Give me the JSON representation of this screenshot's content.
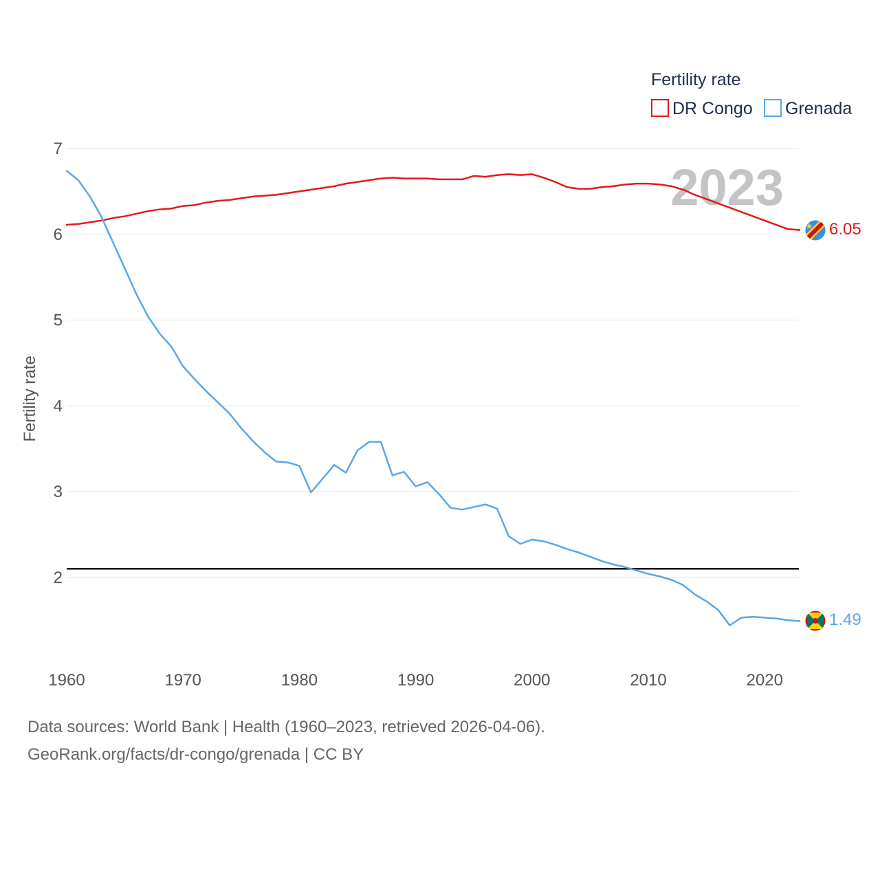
{
  "chart_data": {
    "type": "line",
    "ylabel": "Fertility rate",
    "xlabel": "",
    "xlim": [
      1960,
      2023
    ],
    "ylim": [
      1,
      7
    ],
    "x_ticks": [
      1960,
      1970,
      1980,
      1990,
      2000,
      2010,
      2020
    ],
    "y_ticks": [
      2,
      3,
      4,
      5,
      6,
      7
    ],
    "grid": true,
    "legend": {
      "title": "Fertility rate",
      "placement": "top-right",
      "items": [
        {
          "name": "DR Congo",
          "color": "#e31a1c"
        },
        {
          "name": "Grenada",
          "color": "#5ba6e8"
        }
      ]
    },
    "year_label": "2023",
    "reference_line": {
      "y": 2.1,
      "color": "#000000"
    },
    "x": [
      1960,
      1961,
      1962,
      1963,
      1964,
      1965,
      1966,
      1967,
      1968,
      1969,
      1970,
      1971,
      1972,
      1973,
      1974,
      1975,
      1976,
      1977,
      1978,
      1979,
      1980,
      1981,
      1982,
      1983,
      1984,
      1985,
      1986,
      1987,
      1988,
      1989,
      1990,
      1991,
      1992,
      1993,
      1994,
      1995,
      1996,
      1997,
      1998,
      1999,
      2000,
      2001,
      2002,
      2003,
      2004,
      2005,
      2006,
      2007,
      2008,
      2009,
      2010,
      2011,
      2012,
      2013,
      2014,
      2015,
      2016,
      2017,
      2018,
      2019,
      2020,
      2021,
      2022,
      2023
    ],
    "series": [
      {
        "name": "DR Congo",
        "color": "#e31a1c",
        "end_label": "6.05",
        "values": [
          6.11,
          6.12,
          6.14,
          6.16,
          6.19,
          6.21,
          6.24,
          6.27,
          6.29,
          6.3,
          6.33,
          6.34,
          6.37,
          6.39,
          6.4,
          6.42,
          6.44,
          6.45,
          6.46,
          6.48,
          6.5,
          6.52,
          6.54,
          6.56,
          6.59,
          6.61,
          6.63,
          6.65,
          6.66,
          6.65,
          6.65,
          6.65,
          6.64,
          6.64,
          6.64,
          6.68,
          6.67,
          6.69,
          6.7,
          6.69,
          6.7,
          6.66,
          6.61,
          6.55,
          6.53,
          6.53,
          6.55,
          6.56,
          6.58,
          6.59,
          6.59,
          6.58,
          6.56,
          6.52,
          6.46,
          6.41,
          6.36,
          6.31,
          6.26,
          6.21,
          6.16,
          6.11,
          6.06,
          6.05
        ]
      },
      {
        "name": "Grenada",
        "color": "#5ba6e8",
        "end_label": "1.49",
        "values": [
          6.74,
          6.63,
          6.44,
          6.2,
          5.9,
          5.6,
          5.3,
          5.04,
          4.84,
          4.69,
          4.46,
          4.31,
          4.17,
          4.04,
          3.91,
          3.74,
          3.59,
          3.46,
          3.35,
          3.34,
          3.3,
          2.99,
          3.15,
          3.31,
          3.22,
          3.48,
          3.58,
          3.58,
          3.19,
          3.23,
          3.06,
          3.11,
          2.97,
          2.81,
          2.79,
          2.82,
          2.85,
          2.8,
          2.48,
          2.39,
          2.44,
          2.42,
          2.38,
          2.33,
          2.29,
          2.24,
          2.19,
          2.15,
          2.12,
          2.08,
          2.04,
          2.01,
          1.97,
          1.91,
          1.8,
          1.72,
          1.62,
          1.44,
          1.53,
          1.54,
          1.53,
          1.52,
          1.5,
          1.49
        ]
      }
    ]
  },
  "footer": {
    "source": "Data sources: World Bank | Health (1960–2023, retrieved 2026-04-06).",
    "url": "GeoRank.org/facts/dr-congo/grenada | CC BY"
  }
}
